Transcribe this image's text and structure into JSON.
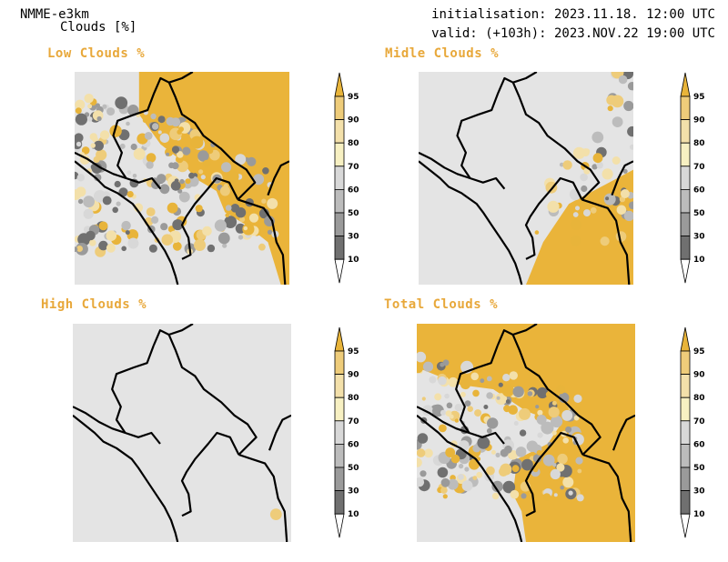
{
  "header": {
    "model": "NMME-e3km",
    "variable": "Clouds [%]",
    "initialisation": "initialisation: 2023.11.18. 12:00 UTC",
    "valid": "valid: (+103h): 2023.NOV.22 19:00 UTC"
  },
  "panels": [
    {
      "id": "low",
      "title": "Low Clouds %"
    },
    {
      "id": "middle",
      "title": "Midle Clouds %"
    },
    {
      "id": "high",
      "title": "High Clouds %"
    },
    {
      "id": "total",
      "title": "Total Clouds %"
    }
  ],
  "colorbar": {
    "labels": [
      "95",
      "90",
      "80",
      "70",
      "60",
      "50",
      "30",
      "10"
    ],
    "colors": [
      "#e8b43a",
      "#eecc7a",
      "#f3e0aa",
      "#f7f0c2",
      "#d8d8d8",
      "#bcbcbc",
      "#9a9a9a",
      "#707070",
      "#ffffff"
    ]
  },
  "colors": {
    "title": "#e8a83a",
    "land_clear": "#e4e4e4",
    "cloud_full": "#eab43a"
  }
}
